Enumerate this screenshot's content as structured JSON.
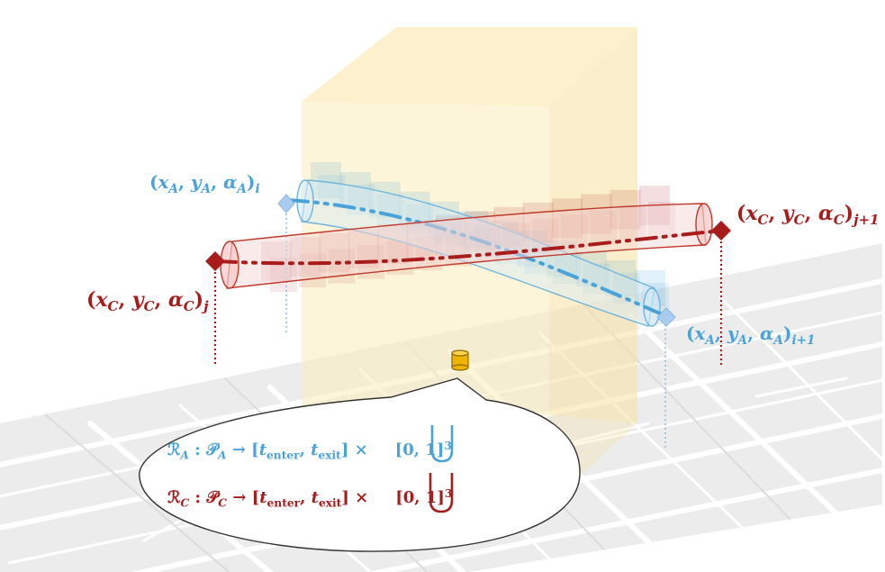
{
  "labels": {
    "point_a_i": {
      "open": "(",
      "x": "x",
      "y": "y",
      "alpha": "α",
      "sub": "A",
      "close": ")",
      "index": "i"
    },
    "point_a_i1": {
      "open": "(",
      "x": "x",
      "y": "y",
      "alpha": "α",
      "sub": "A",
      "close": ")",
      "index": "i+1"
    },
    "point_c_j": {
      "open": "(",
      "x": "x",
      "y": "y",
      "alpha": "α",
      "sub": "C",
      "close": ")",
      "index": "j"
    },
    "point_c_j1": {
      "open": "(",
      "x": "x",
      "y": "y",
      "alpha": "α",
      "sub": "C",
      "close": ")",
      "index": "j+1"
    }
  },
  "formulas": {
    "a": {
      "R": "ℛ",
      "sub": "A",
      "colon": " : ",
      "P": "𝒫",
      "psub": "A",
      "arrow": " → [",
      "t1": "t",
      "t1sub": "enter",
      "comma": ", ",
      "t2": "t",
      "t2sub": "exit",
      "close": "] ×",
      "interval": "[0, 1]",
      "exp": "3"
    },
    "c": {
      "R": "ℛ",
      "sub": "C",
      "colon": " : ",
      "P": "𝒫",
      "psub": "C",
      "arrow": " → [",
      "t1": "t",
      "t1sub": "enter",
      "comma": ", ",
      "t2": "t",
      "t2sub": "exit",
      "close": "] ×",
      "interval": "[0, 1]",
      "exp": "3"
    }
  },
  "colors": {
    "agent_a": "#4aa3d8",
    "agent_c": "#a81c1c",
    "volume": "#fbe9b0",
    "map_bg": "#ececec",
    "map_road": "#ffffff",
    "cylinder": "#f0b400"
  },
  "icons": {
    "waypoint_a": "diamond-icon",
    "waypoint_c": "diamond-icon",
    "sensor": "cylinder-icon"
  }
}
